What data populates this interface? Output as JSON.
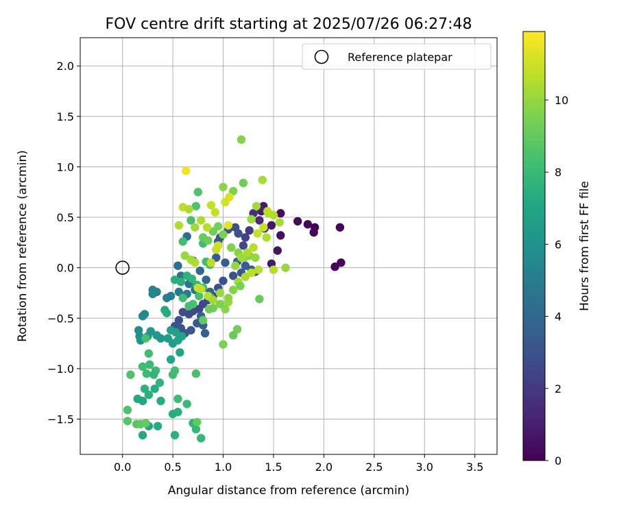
{
  "chart_data": {
    "type": "scatter",
    "title": "FOV centre drift starting at 2025/07/26 06:27:48",
    "xlabel": "Angular distance from reference (arcmin)",
    "ylabel": "Rotation from reference (arcmin)",
    "xlim": [
      -0.42,
      3.72
    ],
    "ylim": [
      -1.85,
      2.28
    ],
    "xticks": [
      0.0,
      0.5,
      1.0,
      1.5,
      2.0,
      2.5,
      3.0,
      3.5
    ],
    "yticks": [
      -1.5,
      -1.0,
      -0.5,
      0.0,
      0.5,
      1.0,
      1.5,
      2.0
    ],
    "x_tick_labels": [
      "0.0",
      "0.5",
      "1.0",
      "1.5",
      "2.0",
      "2.5",
      "3.0",
      "3.5"
    ],
    "y_tick_labels": [
      "−1.5",
      "−1.0",
      "−0.5",
      "0.0",
      "0.5",
      "1.0",
      "1.5",
      "2.0"
    ],
    "grid": true,
    "colormap": "viridis",
    "colorbar": {
      "label": "Hours from first FF file",
      "range": [
        0,
        11.9
      ],
      "ticks": [
        0,
        2,
        4,
        6,
        8,
        10
      ],
      "tick_labels": [
        "0",
        "2",
        "4",
        "6",
        "8",
        "10"
      ]
    },
    "legend": {
      "position": "top-right",
      "entries": [
        "Reference platepar"
      ]
    },
    "reference_point": {
      "x": 0.0,
      "y": 0.0,
      "label": "Reference platepar"
    },
    "points": [
      [
        2.16,
        0.4,
        0.1
      ],
      [
        2.17,
        0.05,
        0.1
      ],
      [
        2.11,
        0.01,
        0.1
      ],
      [
        1.91,
        0.4,
        0.1
      ],
      [
        1.9,
        0.35,
        0.2
      ],
      [
        1.84,
        0.43,
        0.2
      ],
      [
        1.74,
        0.46,
        0.3
      ],
      [
        1.57,
        0.54,
        0.4
      ],
      [
        1.57,
        0.32,
        0.5
      ],
      [
        1.54,
        0.17,
        0.6
      ],
      [
        1.48,
        0.42,
        0.7
      ],
      [
        1.48,
        0.04,
        0.8
      ],
      [
        1.4,
        0.61,
        0.9
      ],
      [
        1.38,
        0.56,
        1.0
      ],
      [
        1.41,
        0.39,
        1.2
      ],
      [
        1.36,
        0.47,
        1.5
      ],
      [
        1.3,
        0.54,
        1.7
      ],
      [
        1.26,
        0.37,
        2.0
      ],
      [
        1.22,
        0.3,
        2.3
      ],
      [
        1.2,
        0.22,
        2.6
      ],
      [
        1.15,
        0.34,
        2.8
      ],
      [
        1.12,
        0.4,
        3.0
      ],
      [
        1.05,
        0.38,
        3.1
      ],
      [
        0.97,
        0.3,
        3.2
      ],
      [
        0.95,
        0.26,
        3.3
      ],
      [
        0.93,
        0.1,
        3.4
      ],
      [
        1.02,
        0.05,
        3.5
      ],
      [
        1.14,
        0.06,
        3.6
      ],
      [
        1.22,
        0.02,
        3.5
      ],
      [
        1.32,
        -0.04,
        3.4
      ],
      [
        1.28,
        -0.02,
        3.3
      ],
      [
        1.18,
        -0.05,
        3.2
      ],
      [
        1.1,
        -0.08,
        3.1
      ],
      [
        1.0,
        -0.13,
        3.0
      ],
      [
        0.95,
        -0.2,
        2.9
      ],
      [
        0.9,
        -0.28,
        2.8
      ],
      [
        0.85,
        -0.32,
        2.7
      ],
      [
        0.8,
        -0.36,
        2.6
      ],
      [
        0.76,
        -0.41,
        2.5
      ],
      [
        0.7,
        -0.43,
        2.6
      ],
      [
        0.66,
        -0.46,
        2.7
      ],
      [
        0.6,
        -0.44,
        2.8
      ],
      [
        0.56,
        -0.52,
        2.9
      ],
      [
        0.52,
        -0.58,
        3.0
      ],
      [
        0.58,
        -0.6,
        3.1
      ],
      [
        0.62,
        -0.65,
        3.2
      ],
      [
        0.68,
        -0.62,
        3.3
      ],
      [
        0.74,
        -0.55,
        3.4
      ],
      [
        0.8,
        -0.57,
        3.5
      ],
      [
        0.82,
        -0.65,
        3.6
      ],
      [
        0.78,
        -0.48,
        3.7
      ],
      [
        0.87,
        -0.24,
        3.8
      ],
      [
        0.83,
        -0.12,
        3.9
      ],
      [
        0.77,
        -0.03,
        4.0
      ],
      [
        0.7,
        0.07,
        4.1
      ],
      [
        0.64,
        0.31,
        4.2
      ],
      [
        0.55,
        0.02,
        4.3
      ],
      [
        0.58,
        -0.08,
        4.5
      ],
      [
        0.66,
        -0.16,
        4.6
      ],
      [
        0.72,
        -0.22,
        4.7
      ],
      [
        0.64,
        -0.26,
        4.8
      ],
      [
        0.56,
        -0.24,
        4.9
      ],
      [
        0.48,
        -0.28,
        5.0
      ],
      [
        0.44,
        -0.3,
        5.1
      ],
      [
        0.34,
        -0.24,
        5.2
      ],
      [
        0.3,
        -0.22,
        5.3
      ],
      [
        0.3,
        -0.26,
        5.4
      ],
      [
        0.22,
        -0.46,
        5.5
      ],
      [
        0.2,
        -0.48,
        5.6
      ],
      [
        0.16,
        -0.62,
        5.8
      ],
      [
        0.17,
        -0.68,
        5.9
      ],
      [
        0.18,
        -0.72,
        6.0
      ],
      [
        0.25,
        -0.68,
        6.1
      ],
      [
        0.28,
        -0.63,
        6.2
      ],
      [
        0.34,
        -0.67,
        6.3
      ],
      [
        0.38,
        -0.7,
        6.4
      ],
      [
        0.45,
        -0.7,
        6.5
      ],
      [
        0.5,
        -0.75,
        6.6
      ],
      [
        0.48,
        -0.62,
        6.7
      ],
      [
        0.53,
        -0.64,
        6.8
      ],
      [
        0.55,
        -0.72,
        6.9
      ],
      [
        0.59,
        -0.68,
        7.0
      ],
      [
        0.57,
        -0.84,
        7.0
      ],
      [
        0.48,
        -0.91,
        7.1
      ],
      [
        0.42,
        -0.42,
        7.2
      ],
      [
        0.44,
        -0.45,
        7.3
      ],
      [
        0.52,
        -0.12,
        7.4
      ],
      [
        0.58,
        -0.14,
        7.5
      ],
      [
        0.64,
        -0.08,
        7.6
      ],
      [
        0.69,
        -0.11,
        7.7
      ],
      [
        0.74,
        -0.17,
        7.8
      ],
      [
        0.8,
        -0.2,
        7.9
      ],
      [
        0.88,
        -0.3,
        8.0
      ],
      [
        0.87,
        0.03,
        8.1
      ],
      [
        0.8,
        0.24,
        8.2
      ],
      [
        0.83,
        0.06,
        8.3
      ],
      [
        0.76,
        -0.28,
        8.4
      ],
      [
        0.7,
        -0.36,
        8.5
      ],
      [
        0.66,
        -0.38,
        8.3
      ],
      [
        0.6,
        -0.3,
        8.2
      ],
      [
        0.6,
        0.26,
        8.3
      ],
      [
        0.68,
        0.47,
        8.4
      ],
      [
        0.73,
        0.61,
        8.5
      ],
      [
        0.75,
        0.75,
        8.6
      ],
      [
        0.23,
        -0.7,
        8.4
      ],
      [
        0.26,
        -0.85,
        8.3
      ],
      [
        0.2,
        -0.98,
        8.2
      ],
      [
        0.24,
        -1.05,
        8.1
      ],
      [
        0.27,
        -0.96,
        8.0
      ],
      [
        0.33,
        -1.02,
        7.9
      ],
      [
        0.31,
        -1.06,
        7.8
      ],
      [
        0.37,
        -1.14,
        7.7
      ],
      [
        0.22,
        -1.2,
        7.6
      ],
      [
        0.26,
        -1.26,
        7.5
      ],
      [
        0.32,
        -1.2,
        7.4
      ],
      [
        0.38,
        -1.32,
        7.3
      ],
      [
        0.15,
        -1.3,
        7.2
      ],
      [
        0.2,
        -1.32,
        7.1
      ],
      [
        0.18,
        -1.55,
        7.0
      ],
      [
        0.26,
        -1.57,
        7.1
      ],
      [
        0.2,
        -1.66,
        7.2
      ],
      [
        0.35,
        -1.57,
        7.3
      ],
      [
        0.5,
        -1.45,
        7.4
      ],
      [
        0.55,
        -1.43,
        7.5
      ],
      [
        0.52,
        -1.66,
        7.6
      ],
      [
        0.7,
        -1.54,
        7.7
      ],
      [
        0.78,
        -1.69,
        7.8
      ],
      [
        0.73,
        -1.6,
        7.9
      ],
      [
        0.64,
        -1.35,
        8.0
      ],
      [
        0.55,
        -1.3,
        8.1
      ],
      [
        0.5,
        -1.06,
        8.2
      ],
      [
        0.52,
        -1.02,
        8.3
      ],
      [
        0.73,
        -1.05,
        8.4
      ],
      [
        0.05,
        -1.41,
        8.5
      ],
      [
        0.08,
        -1.06,
        8.6
      ],
      [
        0.05,
        -1.52,
        8.7
      ],
      [
        0.14,
        -1.55,
        8.8
      ],
      [
        0.18,
        -1.55,
        8.9
      ],
      [
        0.23,
        -1.54,
        9.0
      ],
      [
        0.74,
        -1.53,
        9.0
      ],
      [
        0.8,
        0.3,
        9.1
      ],
      [
        0.85,
        0.27,
        9.2
      ],
      [
        0.9,
        0.36,
        9.3
      ],
      [
        0.95,
        0.41,
        9.4
      ],
      [
        1.0,
        0.33,
        9.5
      ],
      [
        1.08,
        0.2,
        9.6
      ],
      [
        1.15,
        0.15,
        9.7
      ],
      [
        1.21,
        0.1,
        9.8
      ],
      [
        1.26,
        0.12,
        9.9
      ],
      [
        1.32,
        0.1,
        10.0
      ],
      [
        1.36,
        -0.31,
        9.1
      ],
      [
        1.2,
        0.84,
        9.3
      ],
      [
        1.1,
        0.76,
        9.6
      ],
      [
        1.0,
        0.8,
        9.8
      ],
      [
        1.28,
        0.48,
        10.1
      ],
      [
        1.33,
        0.61,
        10.2
      ],
      [
        1.39,
        0.87,
        10.3
      ],
      [
        1.45,
        0.54,
        10.4
      ],
      [
        1.43,
        0.3,
        10.5
      ],
      [
        1.35,
        -0.02,
        10.6
      ],
      [
        1.28,
        -0.05,
        10.7
      ],
      [
        1.22,
        -0.09,
        10.4
      ],
      [
        1.15,
        -0.14,
        10.2
      ],
      [
        1.05,
        -0.34,
        10.0
      ],
      [
        1.02,
        -0.41,
        9.8
      ],
      [
        0.97,
        -0.36,
        9.6
      ],
      [
        0.9,
        -0.4,
        9.4
      ],
      [
        0.86,
        -0.41,
        9.2
      ],
      [
        0.8,
        -0.52,
        9.0
      ],
      [
        1.1,
        -0.67,
        9.1
      ],
      [
        1.14,
        -0.61,
        9.3
      ],
      [
        1.0,
        -0.76,
        9.5
      ],
      [
        1.18,
        1.27,
        9.7
      ],
      [
        0.63,
        0.96,
        11.6
      ],
      [
        1.05,
        0.42,
        11.4
      ],
      [
        0.75,
        -0.2,
        11.0
      ],
      [
        0.78,
        -0.21,
        10.8
      ],
      [
        0.85,
        -0.28,
        10.6
      ],
      [
        0.9,
        -0.32,
        10.3
      ],
      [
        0.97,
        -0.25,
        10.1
      ],
      [
        1.05,
        -0.3,
        9.9
      ],
      [
        1.1,
        -0.22,
        9.7
      ],
      [
        1.17,
        -0.18,
        9.5
      ],
      [
        0.72,
        0.4,
        10.2
      ],
      [
        0.78,
        0.47,
        10.4
      ],
      [
        0.84,
        0.4,
        10.6
      ],
      [
        0.88,
        0.62,
        10.8
      ],
      [
        0.92,
        0.55,
        10.9
      ],
      [
        0.95,
        0.22,
        11.0
      ],
      [
        1.02,
        0.65,
        11.1
      ],
      [
        1.06,
        0.7,
        11.2
      ],
      [
        0.93,
        0.18,
        10.9
      ],
      [
        0.88,
        0.05,
        10.7
      ],
      [
        0.72,
        0.05,
        10.5
      ],
      [
        0.68,
        0.08,
        10.3
      ],
      [
        0.62,
        0.12,
        10.1
      ],
      [
        1.12,
        0.02,
        10.0
      ],
      [
        1.18,
        0.1,
        10.2
      ],
      [
        1.24,
        0.15,
        10.4
      ],
      [
        1.3,
        0.2,
        10.6
      ],
      [
        1.34,
        0.34,
        10.8
      ],
      [
        1.4,
        0.4,
        10.9
      ],
      [
        1.44,
        0.56,
        10.7
      ],
      [
        1.5,
        0.52,
        10.5
      ],
      [
        1.56,
        0.45,
        10.3
      ],
      [
        1.62,
        0.0,
        10.1
      ],
      [
        1.5,
        -0.02,
        10.6
      ],
      [
        0.6,
        0.6,
        10.7
      ],
      [
        0.56,
        0.42,
        10.5
      ],
      [
        0.66,
        0.58,
        10.4
      ]
    ]
  }
}
